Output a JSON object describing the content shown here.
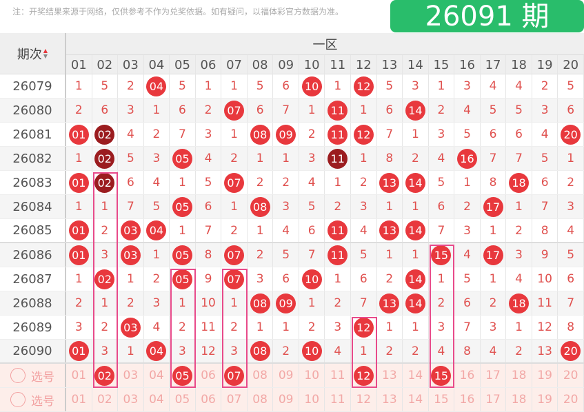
{
  "note": "注：开奖结果来源于网络，仅供参考不作为兑奖依据。如有疑问，以福体彩官方数据为准。",
  "header": {
    "period_label": "期次",
    "sort_up": "▲",
    "sort_down": "▼",
    "zone": "一区",
    "columns": [
      "01",
      "02",
      "03",
      "04",
      "05",
      "06",
      "07",
      "08",
      "09",
      "10",
      "11",
      "12",
      "13",
      "14",
      "15",
      "16",
      "17",
      "18",
      "19",
      "20"
    ]
  },
  "overlay": "26091 期",
  "colors": {
    "ball": "#e8383d",
    "ball_dark": "#9b1c1f",
    "overlay": "#22bb66",
    "highlight_box": "#e84a8a"
  },
  "rows": [
    {
      "period": "26079",
      "cells": [
        1,
        5,
        2,
        "04",
        5,
        1,
        1,
        5,
        6,
        "10",
        1,
        "12",
        5,
        3,
        1,
        3,
        4,
        4,
        2,
        5
      ]
    },
    {
      "period": "26080",
      "cells": [
        2,
        6,
        3,
        1,
        6,
        2,
        "07",
        6,
        7,
        1,
        "11",
        1,
        6,
        "14",
        2,
        4,
        5,
        5,
        3,
        6
      ]
    },
    {
      "period": "26081",
      "cells": [
        "01",
        "02",
        4,
        2,
        7,
        3,
        1,
        "08",
        "09",
        2,
        "11",
        "12",
        7,
        1,
        3,
        5,
        6,
        6,
        4,
        "20"
      ],
      "dark": [
        2
      ]
    },
    {
      "period": "26082",
      "cells": [
        1,
        "02",
        5,
        3,
        "05",
        4,
        2,
        1,
        1,
        3,
        "11",
        1,
        8,
        2,
        4,
        "16",
        7,
        7,
        5,
        1
      ],
      "dark": [
        2,
        11
      ]
    },
    {
      "period": "26083",
      "cells": [
        "01",
        "02",
        6,
        4,
        1,
        5,
        "07",
        2,
        2,
        4,
        1,
        2,
        "13",
        "14",
        5,
        1,
        8,
        "18",
        6,
        2
      ],
      "dark": [
        2
      ]
    },
    {
      "period": "26084",
      "cells": [
        1,
        1,
        7,
        5,
        "05",
        6,
        1,
        "08",
        3,
        5,
        2,
        3,
        1,
        1,
        6,
        2,
        "17",
        1,
        7,
        3
      ]
    },
    {
      "period": "26085",
      "cells": [
        "01",
        2,
        "03",
        "04",
        1,
        7,
        2,
        1,
        4,
        6,
        "11",
        4,
        "13",
        "14",
        7,
        3,
        1,
        2,
        8,
        4
      ]
    },
    {
      "period": "26086",
      "cells": [
        "01",
        3,
        "03",
        1,
        "05",
        8,
        "07",
        2,
        5,
        7,
        "11",
        5,
        1,
        1,
        "15",
        4,
        "17",
        3,
        9,
        5
      ]
    },
    {
      "period": "26087",
      "cells": [
        1,
        "02",
        1,
        2,
        "05",
        9,
        "07",
        3,
        6,
        "10",
        1,
        6,
        2,
        "14",
        1,
        5,
        1,
        4,
        10,
        6
      ]
    },
    {
      "period": "26088",
      "cells": [
        2,
        1,
        2,
        3,
        1,
        10,
        1,
        "08",
        "09",
        1,
        2,
        7,
        "13",
        "14",
        2,
        6,
        2,
        "18",
        11,
        7
      ]
    },
    {
      "period": "26089",
      "cells": [
        3,
        2,
        "03",
        4,
        2,
        11,
        2,
        1,
        1,
        2,
        3,
        "12",
        1,
        1,
        3,
        7,
        3,
        1,
        12,
        8
      ]
    },
    {
      "period": "26090",
      "cells": [
        "01",
        3,
        1,
        "04",
        3,
        12,
        3,
        "08",
        2,
        "10",
        4,
        1,
        2,
        2,
        4,
        8,
        4,
        2,
        13,
        "20"
      ]
    }
  ],
  "select_rows": [
    {
      "label": "选号",
      "selected": [
        "02",
        "05",
        "07",
        "12",
        "15"
      ]
    },
    {
      "label": "选号",
      "selected": []
    }
  ],
  "highlights": [
    {
      "column": "02",
      "from_period": "26083"
    },
    {
      "column": "05",
      "from_period": "26087"
    },
    {
      "column": "07",
      "from_period": "26087"
    },
    {
      "column": "12",
      "from_period": "26089"
    },
    {
      "column": "15",
      "from_period": "26086"
    }
  ]
}
